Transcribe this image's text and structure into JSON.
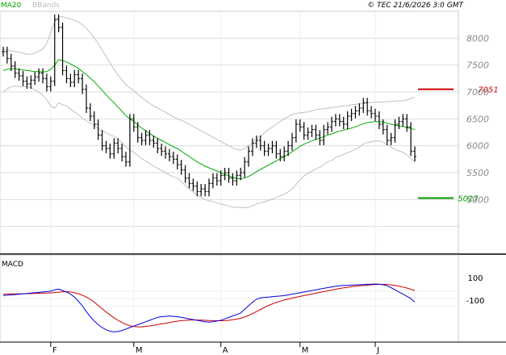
{
  "header": {
    "legend_ma": "MA20",
    "legend_bb": "BBands",
    "copyright": "© TEC 21/6/2026 3:0 GMT"
  },
  "colors": {
    "ma": "#00aa00",
    "bb": "#c0c0c0",
    "price": "#000000",
    "resistance": "#cc0000",
    "support": "#009900",
    "macd": "#0000dd",
    "signal": "#cc0000",
    "grid": "#dddddd"
  },
  "macd_panel": {
    "title": "MACD",
    "y_ticks": [
      "100",
      "-100"
    ]
  },
  "chart_data": {
    "type": "line",
    "title": "",
    "x_ticks": [
      "F",
      "M",
      "A",
      "M",
      "J"
    ],
    "x_tick_index": [
      12,
      33,
      55,
      75,
      94
    ],
    "y_ticks": [
      5000,
      5500,
      6000,
      6500,
      7000,
      7500,
      8000
    ],
    "ylim": [
      4000,
      8500
    ],
    "grid": true,
    "levels": [
      {
        "label": "7051",
        "value": 7051,
        "role": "resistance"
      },
      {
        "label": "5027",
        "value": 5027,
        "role": "support"
      }
    ],
    "price": [
      7750,
      7620,
      7480,
      7350,
      7300,
      7200,
      7150,
      7220,
      7280,
      7350,
      7250,
      7100,
      7200,
      8350,
      8200,
      7400,
      7250,
      7180,
      7320,
      7250,
      7050,
      6700,
      6550,
      6400,
      6200,
      6000,
      5950,
      5850,
      6050,
      5950,
      5800,
      5700,
      6500,
      6350,
      6150,
      6100,
      6200,
      6100,
      6050,
      5950,
      5900,
      5850,
      5800,
      5750,
      5650,
      5550,
      5400,
      5300,
      5250,
      5150,
      5200,
      5150,
      5300,
      5400,
      5350,
      5450,
      5500,
      5400,
      5350,
      5450,
      5500,
      5700,
      5900,
      6050,
      6100,
      6000,
      5900,
      5950,
      6000,
      5850,
      5800,
      5900,
      6000,
      6150,
      6400,
      6350,
      6200,
      6250,
      6300,
      6200,
      6100,
      6300,
      6350,
      6450,
      6500,
      6450,
      6400,
      6550,
      6600,
      6650,
      6700,
      6800,
      6650,
      6600,
      6550,
      6400,
      6300,
      6100,
      6150,
      6400,
      6450,
      6500,
      6350,
      5900,
      5800
    ],
    "ma20": [
      7400,
      7420,
      7430,
      7430,
      7420,
      7410,
      7400,
      7390,
      7380,
      7380,
      7370,
      7380,
      7420,
      7500,
      7600,
      7580,
      7560,
      7520,
      7480,
      7440,
      7380,
      7320,
      7260,
      7190,
      7110,
      7030,
      6950,
      6870,
      6800,
      6720,
      6640,
      6560,
      6500,
      6450,
      6390,
      6330,
      6280,
      6230,
      6180,
      6140,
      6100,
      6060,
      6020,
      5980,
      5950,
      5900,
      5850,
      5800,
      5750,
      5700,
      5660,
      5620,
      5590,
      5560,
      5530,
      5500,
      5470,
      5440,
      5410,
      5395,
      5385,
      5400,
      5430,
      5470,
      5520,
      5560,
      5600,
      5640,
      5680,
      5720,
      5760,
      5800,
      5840,
      5890,
      5940,
      5990,
      6030,
      6060,
      6090,
      6120,
      6140,
      6170,
      6200,
      6220,
      6250,
      6270,
      6290,
      6310,
      6330,
      6350,
      6380,
      6410,
      6430,
      6440,
      6450,
      6450,
      6440,
      6420,
      6400,
      6380,
      6370,
      6360,
      6340,
      6320,
      6300
    ],
    "bb_upper": [
      7800,
      7780,
      7760,
      7750,
      7740,
      7720,
      7700,
      7700,
      7720,
      7760,
      7800,
      7900,
      8100,
      8300,
      8400,
      8400,
      8380,
      8360,
      8330,
      8300,
      8250,
      8180,
      8100,
      8000,
      7900,
      7780,
      7660,
      7540,
      7420,
      7320,
      7220,
      7140,
      7080,
      7020,
      6960,
      6900,
      6840,
      6790,
      6740,
      6700,
      6660,
      6620,
      6580,
      6540,
      6500,
      6470,
      6440,
      6400,
      6360,
      6320,
      6280,
      6240,
      6200,
      6160,
      6120,
      6080,
      6040,
      6000,
      5960,
      5930,
      5920,
      5950,
      6000,
      6060,
      6120,
      6180,
      6240,
      6300,
      6350,
      6400,
      6450,
      6500,
      6540,
      6580,
      6600,
      6610,
      6620,
      6630,
      6650,
      6670,
      6680,
      6690,
      6700,
      6710,
      6720,
      6730,
      6740,
      6750,
      6760,
      6770,
      6780,
      6790,
      6800,
      6805,
      6810,
      6810,
      6815,
      6820,
      6825,
      6830,
      6835,
      6840,
      6850,
      6880,
      6900
    ],
    "bb_lower": [
      7000,
      7060,
      7100,
      7110,
      7100,
      7100,
      7100,
      7080,
      7040,
      7000,
      6940,
      6860,
      6740,
      6700,
      6800,
      6760,
      6740,
      6680,
      6630,
      6580,
      6510,
      6460,
      6420,
      6380,
      6320,
      6280,
      6240,
      6200,
      6180,
      6120,
      6060,
      5980,
      5920,
      5880,
      5820,
      5760,
      5720,
      5670,
      5620,
      5580,
      5540,
      5500,
      5460,
      5420,
      5400,
      5330,
      5260,
      5200,
      5140,
      5080,
      5040,
      5000,
      4980,
      4960,
      4940,
      4920,
      4900,
      4880,
      4860,
      4860,
      4850,
      4850,
      4860,
      4880,
      4920,
      4940,
      4960,
      4980,
      5010,
      5040,
      5070,
      5100,
      5140,
      5200,
      5280,
      5370,
      5440,
      5490,
      5530,
      5570,
      5600,
      5650,
      5700,
      5730,
      5780,
      5810,
      5840,
      5870,
      5900,
      5930,
      5980,
      6030,
      6060,
      6075,
      6090,
      6090,
      6065,
      6020,
      5975,
      5930,
      5905,
      5880,
      5830,
      5760,
      5700
    ],
    "macd": [
      40,
      45,
      50,
      55,
      60,
      65,
      70,
      75,
      80,
      85,
      90,
      95,
      100,
      120,
      130,
      110,
      90,
      60,
      20,
      -40,
      -100,
      -180,
      -250,
      -310,
      -360,
      -400,
      -430,
      -450,
      -460,
      -455,
      -440,
      -420,
      -400,
      -380,
      -360,
      -340,
      -320,
      -300,
      -280,
      -260,
      -250,
      -245,
      -240,
      -245,
      -250,
      -260,
      -270,
      -280,
      -290,
      -300,
      -310,
      -320,
      -325,
      -320,
      -310,
      -300,
      -280,
      -260,
      -240,
      -220,
      -200,
      -150,
      -100,
      -50,
      -10,
      10,
      15,
      20,
      25,
      30,
      35,
      40,
      50,
      60,
      70,
      80,
      90,
      100,
      110,
      120,
      130,
      140,
      150,
      160,
      170,
      175,
      180,
      182,
      185,
      188,
      190,
      192,
      195,
      198,
      200,
      198,
      190,
      175,
      150,
      120,
      90,
      60,
      30,
      0,
      -50
    ],
    "macd_signal": [
      60,
      62,
      63,
      64,
      65,
      66,
      67,
      68,
      70,
      72,
      74,
      76,
      78,
      82,
      88,
      92,
      94,
      90,
      80,
      65,
      45,
      20,
      -10,
      -50,
      -95,
      -140,
      -185,
      -225,
      -265,
      -300,
      -330,
      -355,
      -375,
      -385,
      -390,
      -390,
      -385,
      -378,
      -370,
      -360,
      -350,
      -340,
      -330,
      -320,
      -312,
      -305,
      -300,
      -298,
      -296,
      -296,
      -298,
      -300,
      -303,
      -305,
      -306,
      -306,
      -305,
      -300,
      -292,
      -283,
      -272,
      -255,
      -233,
      -207,
      -180,
      -150,
      -122,
      -96,
      -74,
      -54,
      -37,
      -21,
      -7,
      6,
      18,
      29,
      40,
      51,
      62,
      73,
      84,
      95,
      106,
      117,
      128,
      138,
      147,
      155,
      162,
      169,
      175,
      180,
      185,
      189,
      193,
      195,
      195,
      193,
      188,
      180,
      170,
      158,
      144,
      128,
      110
    ]
  }
}
